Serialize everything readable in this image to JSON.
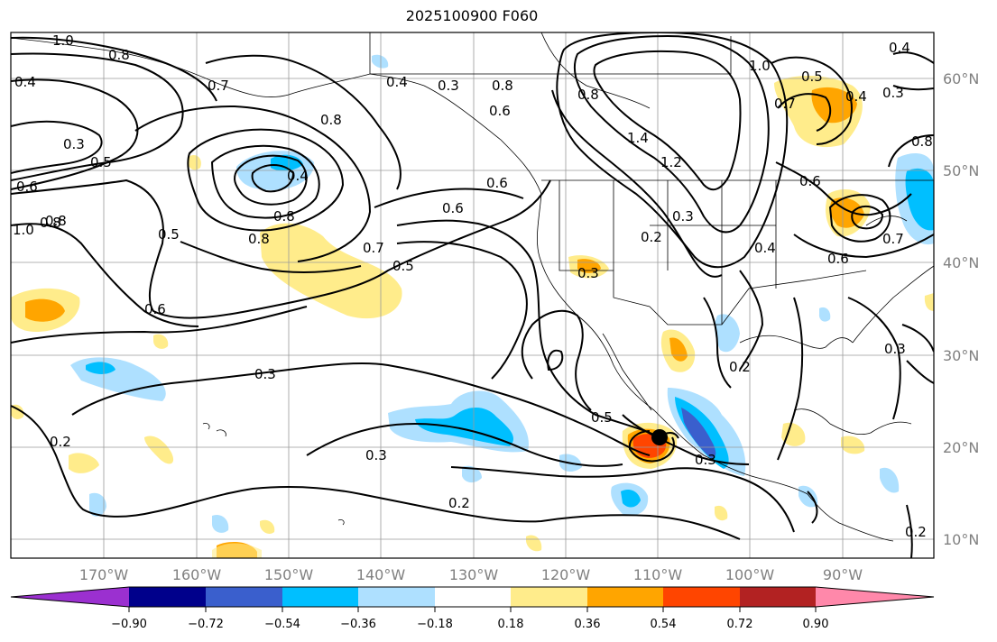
{
  "title": "2025100900 F060",
  "latitude_labels": [
    "60°N",
    "50°N",
    "40°N",
    "30°N",
    "20°N",
    "10°N"
  ],
  "longitude_labels": [
    "170°W",
    "160°W",
    "150°W",
    "140°W",
    "130°W",
    "120°W",
    "110°W",
    "100°W",
    "90°W"
  ],
  "colorbar": {
    "ticks": [
      "−0.90",
      "−0.72",
      "−0.54",
      "−0.36",
      "−0.18",
      "0.18",
      "0.36",
      "0.54",
      "0.72",
      "0.90"
    ],
    "colors": [
      "#9b30d0",
      "#00008b",
      "#3a5fcd",
      "#00bfff",
      "#aee0ff",
      "#ffffff",
      "#ffec8b",
      "#ffa500",
      "#ff4500",
      "#b22222",
      "#ff88aa"
    ]
  },
  "contour_labels": [
    "1.0",
    "0.8",
    "0.4",
    "0.3",
    "0.5",
    "0.6",
    "1.0",
    "0.8",
    "0.7",
    "0.8",
    "0.4",
    "0.8",
    "0.8",
    "0.5",
    "0.8",
    "0.7",
    "0.5",
    "0.6",
    "0.6",
    "0.3",
    "0.2",
    "0.3",
    "0.4",
    "0.3",
    "0.8",
    "0.6",
    "0.6",
    "1.4",
    "1.2",
    "0.8",
    "1.0",
    "0.5",
    "0.7",
    "0.4",
    "0.3",
    "0.4",
    "0.6",
    "0.6",
    "0.7",
    "0.3",
    "0.4",
    "0.5",
    "0.3",
    "0.2",
    "0.3",
    "0.2",
    "0.8",
    "0.2",
    "0.3",
    "0.2"
  ]
}
